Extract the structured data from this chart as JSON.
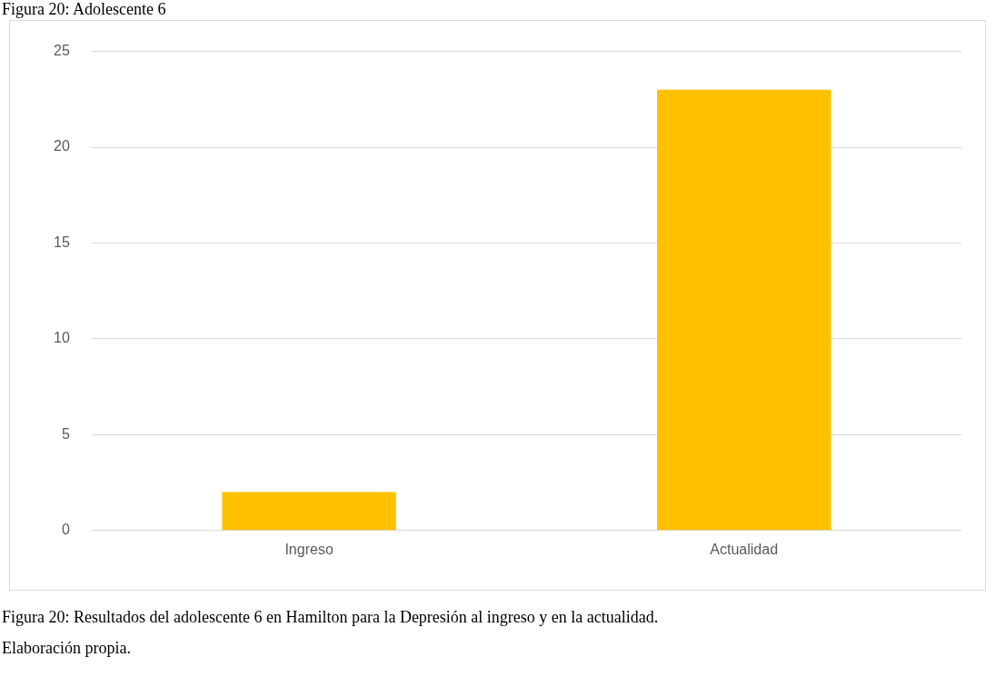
{
  "chart_data": {
    "type": "bar",
    "title": "Figura 20: Adolescente 6",
    "categories": [
      "Ingreso",
      "Actualidad"
    ],
    "values": [
      2,
      23
    ],
    "color": "#ffc000",
    "ylim": [
      0,
      25
    ],
    "yticks": [
      0,
      5,
      10,
      15,
      20,
      25
    ],
    "grid": "y",
    "legend": false,
    "annotations": [
      "Figura 20: Resultados del adolescente 6 en Hamilton para la Depresión al ingreso y en la actualidad.",
      "Elaboración propia."
    ]
  }
}
